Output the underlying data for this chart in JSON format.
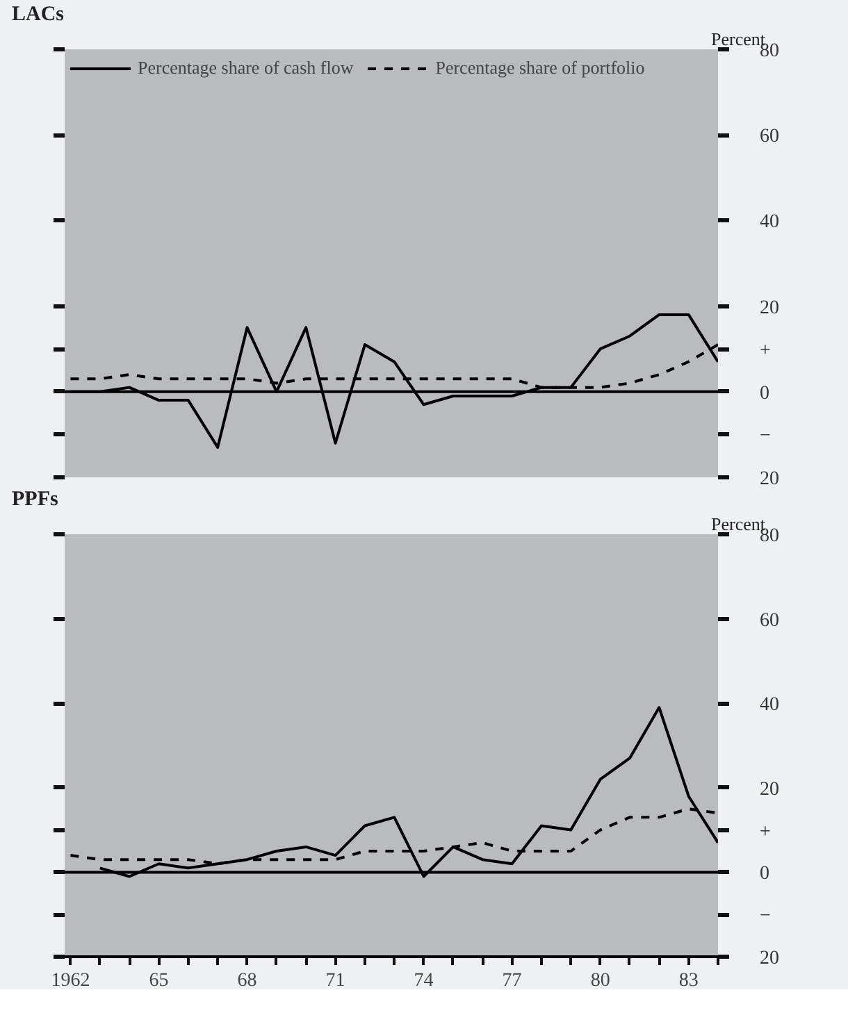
{
  "chart_data": [
    {
      "type": "line",
      "title": "LACs",
      "ylabel": "Percent",
      "legend": "top left",
      "tick_labels": "y",
      "grid": false,
      "x": [
        1962,
        1963,
        1964,
        1965,
        1966,
        1967,
        1968,
        1969,
        1970,
        1971,
        1972,
        1973,
        1974,
        1975,
        1976,
        1977,
        1978,
        1979,
        1980,
        1981,
        1982,
        1983,
        1984
      ],
      "xlim": [
        1961.8,
        1984
      ],
      "ylim": [
        -20,
        80
      ],
      "yticks": [
        {
          "value": -20,
          "label": "20"
        },
        {
          "value": -10,
          "label": "−"
        },
        0,
        {
          "value": 10,
          "label": "+"
        },
        20,
        40,
        60,
        80
      ],
      "ref_lines": [
        {
          "axis": "y",
          "value": 0
        }
      ],
      "series": [
        {
          "name": "Percentage share of cash flow",
          "color": "#000000",
          "line_style": "solid",
          "values": [
            0,
            0,
            1,
            -2,
            -2,
            -13,
            15,
            0,
            15,
            -12,
            11,
            7,
            -3,
            -1,
            -1,
            -1,
            1,
            1,
            10,
            13,
            18,
            18,
            7
          ]
        },
        {
          "name": "Percentage share of portfolio",
          "color": "#000000",
          "line_style": "dashed",
          "values": [
            3,
            3,
            4,
            3,
            3,
            3,
            3,
            2,
            3,
            3,
            3,
            3,
            3,
            3,
            3,
            3,
            1,
            1,
            1,
            2,
            4,
            7,
            11
          ]
        }
      ]
    },
    {
      "type": "line",
      "title": "PPFs",
      "ylabel": "Percent",
      "grid": false,
      "x": [
        1962,
        1963,
        1964,
        1965,
        1966,
        1967,
        1968,
        1969,
        1970,
        1971,
        1972,
        1973,
        1974,
        1975,
        1976,
        1977,
        1978,
        1979,
        1980,
        1981,
        1982,
        1983,
        1984
      ],
      "xlim": [
        1961.8,
        1984
      ],
      "ylim": [
        -20,
        80
      ],
      "xticks": [
        1962,
        {
          "value": 1963,
          "label": null
        },
        {
          "value": 1964,
          "label": null
        },
        {
          "value": 1965,
          "label": "65"
        },
        {
          "value": 1966,
          "label": null
        },
        {
          "value": 1967,
          "label": null
        },
        {
          "value": 1968,
          "label": "68"
        },
        {
          "value": 1969,
          "label": null
        },
        {
          "value": 1970,
          "label": null
        },
        {
          "value": 1971,
          "label": "71"
        },
        {
          "value": 1972,
          "label": null
        },
        {
          "value": 1973,
          "label": null
        },
        {
          "value": 1974,
          "label": "74"
        },
        {
          "value": 1975,
          "label": null
        },
        {
          "value": 1976,
          "label": null
        },
        {
          "value": 1977,
          "label": "77"
        },
        {
          "value": 1978,
          "label": null
        },
        {
          "value": 1979,
          "label": null
        },
        {
          "value": 1980,
          "label": "80"
        },
        {
          "value": 1981,
          "label": null
        },
        {
          "value": 1982,
          "label": null
        },
        {
          "value": 1983,
          "label": "83"
        },
        {
          "value": 1984,
          "label": null
        }
      ],
      "yticks": [
        {
          "value": -20,
          "label": "20"
        },
        {
          "value": -10,
          "label": "−"
        },
        0,
        {
          "value": 10,
          "label": "+"
        },
        20,
        40,
        60,
        80
      ],
      "ref_lines": [
        {
          "axis": "y",
          "value": 0
        }
      ],
      "series": [
        {
          "color": "#000000",
          "line_style": "solid",
          "values": [
            null,
            1,
            -1,
            2,
            1,
            2,
            3,
            5,
            6,
            4,
            11,
            13,
            -1,
            6,
            3,
            2,
            11,
            10,
            22,
            27,
            39,
            18,
            7
          ]
        },
        {
          "color": "#000000",
          "line_style": "dashed",
          "values": [
            4,
            3,
            3,
            3,
            3,
            2,
            3,
            3,
            3,
            3,
            5,
            5,
            5,
            6,
            7,
            5,
            5,
            5,
            10,
            13,
            13,
            15,
            14
          ]
        }
      ]
    }
  ]
}
